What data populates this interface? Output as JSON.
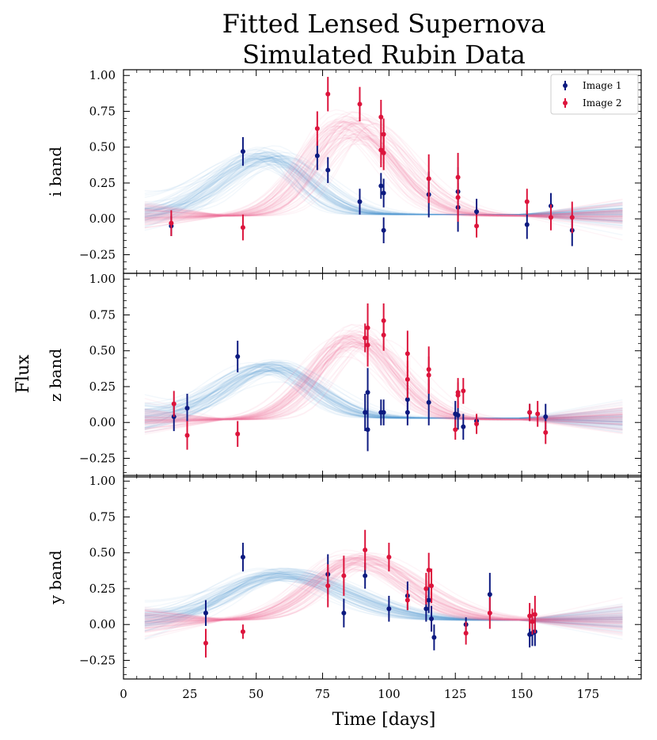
{
  "chart_data": {
    "type": "scatter",
    "title_lines": [
      "Fitted Lensed Supernova",
      "Simulated Rubin Data"
    ],
    "xlabel": "Time [days]",
    "ylabel": "Flux",
    "xlim": [
      0,
      195
    ],
    "ylim": [
      -0.38,
      1.04
    ],
    "x_ticks": [
      0,
      25,
      50,
      75,
      100,
      125,
      150,
      175
    ],
    "y_ticks": [
      -0.25,
      0.0,
      0.25,
      0.5,
      0.75,
      1.0
    ],
    "y_tick_labels": [
      "−0.25",
      "0.00",
      "0.25",
      "0.50",
      "0.75",
      "1.00"
    ],
    "legend": {
      "position": "top-right",
      "entries": [
        {
          "name": "Image 1",
          "color": "#0d1a80"
        },
        {
          "name": "Image 2",
          "color": "#dc143c"
        }
      ]
    },
    "model_colors": {
      "Image 1": "#5b9bd0",
      "Image 2": "#ea7899"
    },
    "model_range": [
      8,
      188
    ],
    "panels": [
      {
        "band": "i band",
        "models": {
          "Image 1": {
            "amp": 0.4,
            "center": 55,
            "rise": 18,
            "fall": 15,
            "tail": 0.03
          },
          "Image 2": {
            "amp": 0.62,
            "center": 86,
            "rise": 14,
            "fall": 17,
            "tail": 0.02
          }
        },
        "series": [
          {
            "name": "Image 1",
            "points": [
              {
                "x": 18,
                "y": -0.05,
                "err": 0.07
              },
              {
                "x": 45,
                "y": 0.47,
                "err": 0.1
              },
              {
                "x": 73,
                "y": 0.44,
                "err": 0.1
              },
              {
                "x": 77,
                "y": 0.34,
                "err": 0.09
              },
              {
                "x": 89,
                "y": 0.12,
                "err": 0.09
              },
              {
                "x": 97,
                "y": 0.23,
                "err": 0.09
              },
              {
                "x": 98,
                "y": -0.08,
                "err": 0.09
              },
              {
                "x": 98,
                "y": 0.18,
                "err": 0.1
              },
              {
                "x": 115,
                "y": 0.17,
                "err": 0.16
              },
              {
                "x": 126,
                "y": 0.08,
                "err": 0.17
              },
              {
                "x": 126,
                "y": 0.19,
                "err": 0.17
              },
              {
                "x": 133,
                "y": 0.05,
                "err": 0.09
              },
              {
                "x": 152,
                "y": -0.04,
                "err": 0.1
              },
              {
                "x": 161,
                "y": 0.09,
                "err": 0.09
              },
              {
                "x": 169,
                "y": -0.08,
                "err": 0.11
              }
            ]
          },
          {
            "name": "Image 2",
            "points": [
              {
                "x": 18,
                "y": -0.03,
                "err": 0.09
              },
              {
                "x": 45,
                "y": -0.06,
                "err": 0.09
              },
              {
                "x": 73,
                "y": 0.63,
                "err": 0.12
              },
              {
                "x": 77,
                "y": 0.87,
                "err": 0.12
              },
              {
                "x": 89,
                "y": 0.8,
                "err": 0.12
              },
              {
                "x": 97,
                "y": 0.71,
                "err": 0.12
              },
              {
                "x": 97,
                "y": 0.48,
                "err": 0.12
              },
              {
                "x": 98,
                "y": 0.59,
                "err": 0.11
              },
              {
                "x": 98,
                "y": 0.46,
                "err": 0.12
              },
              {
                "x": 115,
                "y": 0.28,
                "err": 0.17
              },
              {
                "x": 126,
                "y": 0.29,
                "err": 0.17
              },
              {
                "x": 126,
                "y": 0.15,
                "err": 0.17
              },
              {
                "x": 133,
                "y": -0.05,
                "err": 0.08
              },
              {
                "x": 152,
                "y": 0.12,
                "err": 0.09
              },
              {
                "x": 161,
                "y": 0.01,
                "err": 0.09
              },
              {
                "x": 169,
                "y": 0.01,
                "err": 0.11
              }
            ]
          }
        ]
      },
      {
        "band": "z band",
        "models": {
          "Image 1": {
            "amp": 0.35,
            "center": 56,
            "rise": 18,
            "fall": 16,
            "tail": 0.03
          },
          "Image 2": {
            "amp": 0.56,
            "center": 87,
            "rise": 14,
            "fall": 15,
            "tail": 0.02
          }
        },
        "series": [
          {
            "name": "Image 1",
            "points": [
              {
                "x": 19,
                "y": 0.04,
                "err": 0.1
              },
              {
                "x": 24,
                "y": 0.1,
                "err": 0.1
              },
              {
                "x": 43,
                "y": 0.46,
                "err": 0.11
              },
              {
                "x": 91,
                "y": 0.07,
                "err": 0.13
              },
              {
                "x": 92,
                "y": 0.21,
                "err": 0.17
              },
              {
                "x": 92,
                "y": -0.05,
                "err": 0.15
              },
              {
                "x": 97,
                "y": 0.07,
                "err": 0.09
              },
              {
                "x": 98,
                "y": 0.07,
                "err": 0.09
              },
              {
                "x": 107,
                "y": 0.16,
                "err": 0.12
              },
              {
                "x": 107,
                "y": 0.07,
                "err": 0.09
              },
              {
                "x": 115,
                "y": 0.14,
                "err": 0.16
              },
              {
                "x": 125,
                "y": 0.06,
                "err": 0.09
              },
              {
                "x": 126,
                "y": 0.05,
                "err": 0.1
              },
              {
                "x": 128,
                "y": -0.03,
                "err": 0.09
              },
              {
                "x": 133,
                "y": 0.01,
                "err": 0.04
              },
              {
                "x": 153,
                "y": 0.07,
                "err": 0.06
              },
              {
                "x": 159,
                "y": 0.04,
                "err": 0.09
              }
            ]
          },
          {
            "name": "Image 2",
            "points": [
              {
                "x": 19,
                "y": 0.13,
                "err": 0.09
              },
              {
                "x": 24,
                "y": -0.09,
                "err": 0.1
              },
              {
                "x": 43,
                "y": -0.08,
                "err": 0.09
              },
              {
                "x": 91,
                "y": 0.59,
                "err": 0.1
              },
              {
                "x": 92,
                "y": 0.66,
                "err": 0.17
              },
              {
                "x": 92,
                "y": 0.54,
                "err": 0.15
              },
              {
                "x": 98,
                "y": 0.71,
                "err": 0.12
              },
              {
                "x": 98,
                "y": 0.61,
                "err": 0.11
              },
              {
                "x": 107,
                "y": 0.48,
                "err": 0.16
              },
              {
                "x": 107,
                "y": 0.3,
                "err": 0.13
              },
              {
                "x": 115,
                "y": 0.37,
                "err": 0.16
              },
              {
                "x": 115,
                "y": 0.33,
                "err": 0.13
              },
              {
                "x": 125,
                "y": -0.05,
                "err": 0.07
              },
              {
                "x": 126,
                "y": 0.19,
                "err": 0.09
              },
              {
                "x": 126,
                "y": 0.21,
                "err": 0.1
              },
              {
                "x": 128,
                "y": 0.22,
                "err": 0.09
              },
              {
                "x": 133,
                "y": -0.01,
                "err": 0.07
              },
              {
                "x": 153,
                "y": 0.07,
                "err": 0.06
              },
              {
                "x": 156,
                "y": 0.06,
                "err": 0.09
              },
              {
                "x": 159,
                "y": -0.07,
                "err": 0.08
              }
            ]
          }
        ]
      },
      {
        "band": "y band",
        "models": {
          "Image 1": {
            "amp": 0.32,
            "center": 60,
            "rise": 20,
            "fall": 24,
            "tail": 0.03
          },
          "Image 2": {
            "amp": 0.42,
            "center": 88,
            "rise": 16,
            "fall": 20,
            "tail": 0.03
          }
        },
        "series": [
          {
            "name": "Image 1",
            "points": [
              {
                "x": 31,
                "y": 0.08,
                "err": 0.09
              },
              {
                "x": 45,
                "y": 0.47,
                "err": 0.1
              },
              {
                "x": 77,
                "y": 0.35,
                "err": 0.14
              },
              {
                "x": 83,
                "y": 0.08,
                "err": 0.1
              },
              {
                "x": 91,
                "y": 0.34,
                "err": 0.09
              },
              {
                "x": 100,
                "y": 0.11,
                "err": 0.09
              },
              {
                "x": 107,
                "y": 0.2,
                "err": 0.1
              },
              {
                "x": 114,
                "y": 0.11,
                "err": 0.09
              },
              {
                "x": 115,
                "y": 0.17,
                "err": 0.09
              },
              {
                "x": 116,
                "y": 0.04,
                "err": 0.09
              },
              {
                "x": 117,
                "y": -0.09,
                "err": 0.09
              },
              {
                "x": 129,
                "y": 0.0,
                "err": 0.05
              },
              {
                "x": 138,
                "y": 0.21,
                "err": 0.15
              },
              {
                "x": 153,
                "y": -0.07,
                "err": 0.09
              },
              {
                "x": 154,
                "y": -0.06,
                "err": 0.09
              },
              {
                "x": 155,
                "y": -0.05,
                "err": 0.1
              }
            ]
          },
          {
            "name": "Image 2",
            "points": [
              {
                "x": 31,
                "y": -0.13,
                "err": 0.1
              },
              {
                "x": 45,
                "y": -0.05,
                "err": 0.05
              },
              {
                "x": 77,
                "y": 0.27,
                "err": 0.15
              },
              {
                "x": 83,
                "y": 0.34,
                "err": 0.14
              },
              {
                "x": 91,
                "y": 0.52,
                "err": 0.14
              },
              {
                "x": 100,
                "y": 0.47,
                "err": 0.1
              },
              {
                "x": 107,
                "y": 0.17,
                "err": 0.07
              },
              {
                "x": 114,
                "y": 0.25,
                "err": 0.11
              },
              {
                "x": 115,
                "y": 0.38,
                "err": 0.12
              },
              {
                "x": 116,
                "y": 0.27,
                "err": 0.12
              },
              {
                "x": 129,
                "y": -0.06,
                "err": 0.08
              },
              {
                "x": 138,
                "y": 0.08,
                "err": 0.11
              },
              {
                "x": 153,
                "y": 0.06,
                "err": 0.09
              },
              {
                "x": 154,
                "y": 0.02,
                "err": 0.09
              },
              {
                "x": 155,
                "y": 0.07,
                "err": 0.13
              }
            ]
          }
        ]
      }
    ]
  }
}
